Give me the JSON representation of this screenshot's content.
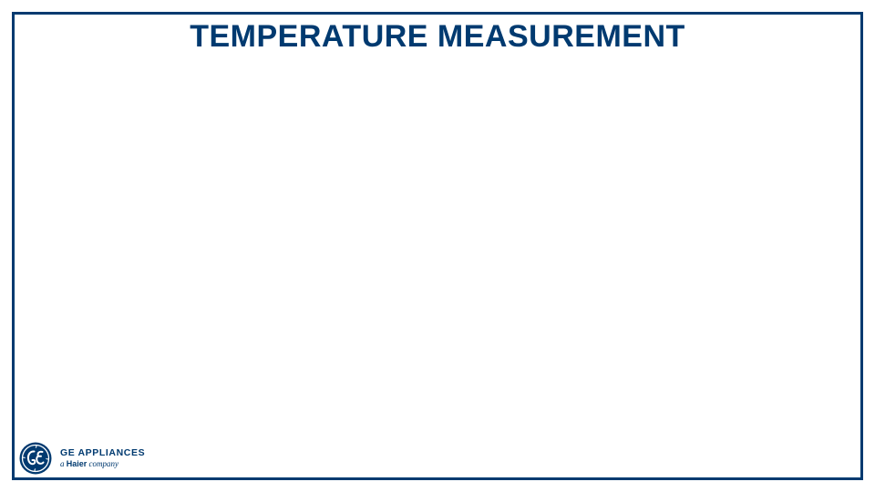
{
  "slide": {
    "title": "TEMPERATURE MEASUREMENT",
    "accent_color": "#003a70",
    "background_color": "#ffffff"
  },
  "logo": {
    "icon": "ge-monogram-icon",
    "name": "GE APPLIANCES",
    "tagline_prefix": "a",
    "tagline_brand": "Haier",
    "tagline_suffix": "company"
  }
}
